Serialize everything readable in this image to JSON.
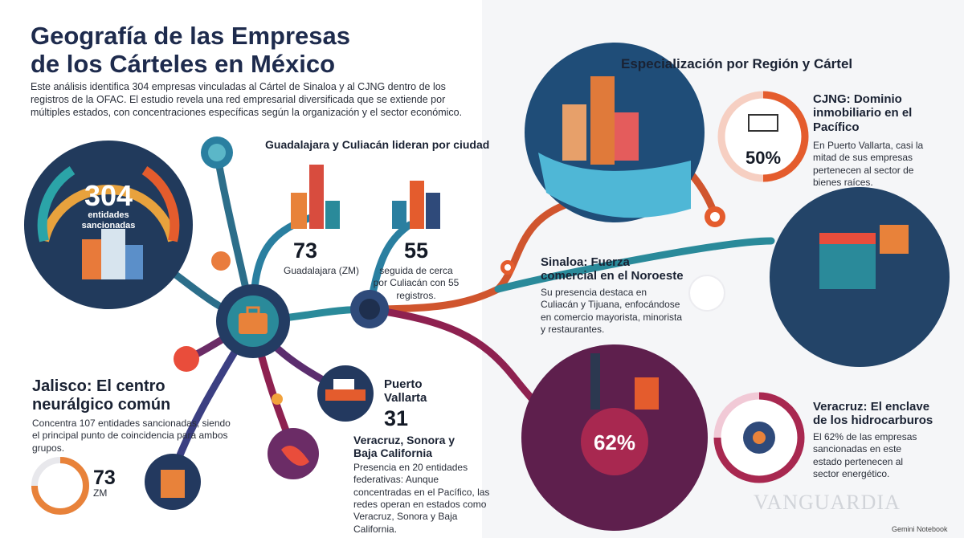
{
  "header": {
    "title_lines": [
      "Geografía de las Empresas",
      "de los Cárteles en México"
    ],
    "intro": "Este análisis identifica 304 empresas vinculadas al Cártel de Sinaloa y al CJNG dentro de los registros de la OFAC. El estudio revela una red empresarial diversificada que se extiende por múltiples estados, con concentraciones específicas según la organización y el sector económico."
  },
  "gauge": {
    "number": "304",
    "label": "entidades sancionadas"
  },
  "cities": {
    "title": "Guadalajara y Culiacán lideran por ciudad",
    "guadalajara": {
      "number": "73",
      "label": "Guadalajara (ZM)"
    },
    "culiacan": {
      "number": "55",
      "label": "seguida de cerca por Culiacán con 55 registros."
    }
  },
  "puerto_vallarta": {
    "label": "Puerto Vallarta",
    "number": "31"
  },
  "other_states": {
    "title": "Veracruz, Sonora y Baja California",
    "text": "Presencia en 20 entidades federativas: Aunque concentradas en el Pacífico, las redes operan en estados como Veracruz, Sonora y Baja California."
  },
  "jalisco": {
    "title": "Jalisco: El centro neurálgico común",
    "text": "Concentra 107 entidades sancionadas, siendo el principal punto de coincidencia para ambos grupos.",
    "number": "73",
    "unit": "ZM"
  },
  "specialization": {
    "title": "Especialización por Región y Cártel",
    "cjng": {
      "title": "CJNG: Dominio inmobiliario en el Pacífico",
      "text": "En Puerto Vallarta, casi la mitad de sus empresas pertenecen al sector de bienes raíces.",
      "percent": "50%"
    },
    "sinaloa": {
      "title": "Sinaloa: Fuerza comercial en el Noroeste",
      "text": "Su presencia destaca en Culiacán y Tijuana, enfocándose en comercio mayorista, minorista y restaurantes."
    },
    "veracruz": {
      "title": "Veracruz: El enclave de los hidrocarburos",
      "text": "El 62% de las empresas sancionadas en este estado pertenecen al sector energético.",
      "percent": "62%"
    }
  },
  "footer": {
    "watermark": "VANGUARDIA",
    "credit": "Gemini Notebook"
  }
}
